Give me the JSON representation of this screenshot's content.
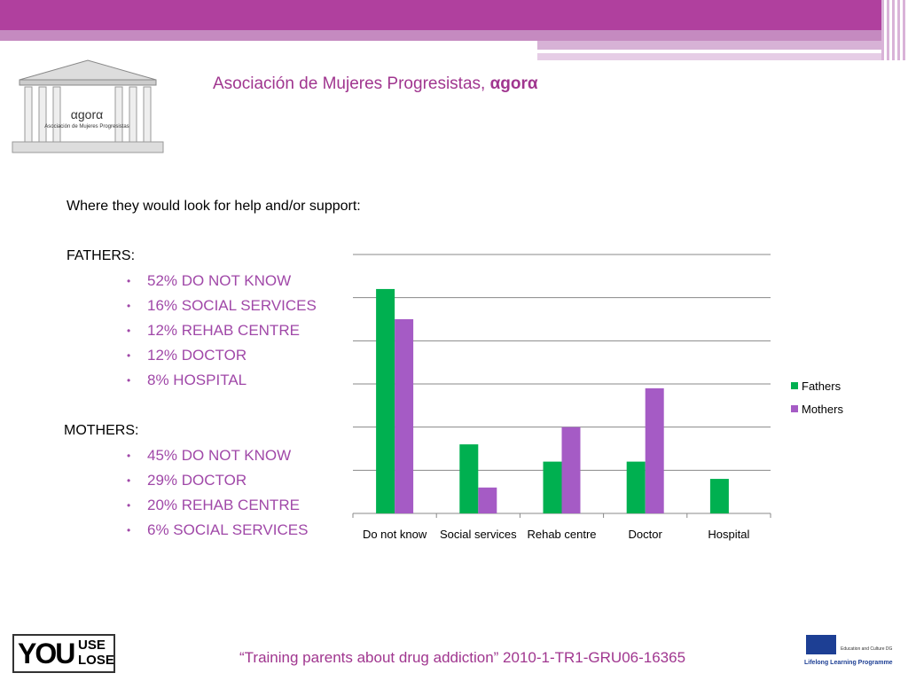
{
  "header": {
    "title": "Asociación de Mujeres Progresistas, ",
    "title_brand": "αgorα",
    "logo_brand": "αgorα",
    "logo_caption": "Asociación de Mujeres Progresistas"
  },
  "content": {
    "intro": "Where they would look for help and/or support:",
    "fathers_heading": "FATHERS:",
    "fathers_items": [
      "52% DO NOT KNOW",
      "16% SOCIAL SERVICES",
      "12% REHAB CENTRE",
      "12% DOCTOR",
      "8% HOSPITAL"
    ],
    "mothers_heading": "MOTHERS:",
    "mothers_items": [
      "45% DO NOT KNOW",
      "29% DOCTOR",
      "20% REHAB CENTRE",
      "6% SOCIAL SERVICES"
    ]
  },
  "chart_data": {
    "type": "bar",
    "categories": [
      "Do not know",
      "Social services",
      "Rehab centre",
      "Doctor",
      "Hospital"
    ],
    "series": [
      {
        "name": "Fathers",
        "color": "#00b050",
        "values": [
          52,
          16,
          12,
          12,
          8
        ]
      },
      {
        "name": "Mothers",
        "color": "#a55bc5",
        "values": [
          45,
          6,
          20,
          29,
          null
        ]
      }
    ],
    "ylim": [
      0,
      60
    ],
    "yticks": [
      0,
      10,
      20,
      30,
      40,
      50,
      60
    ],
    "grid": true,
    "legend": "right"
  },
  "footer": {
    "caption": "“Training parents about drug addiction” 2010-1-TR1-GRU06-16365",
    "left_logo_big": "YOU",
    "left_logo_top": "USE",
    "left_logo_bottom": "LOSE",
    "eu_line1": "Education and Culture DG",
    "eu_line2": "Lifelong Learning Programme"
  }
}
